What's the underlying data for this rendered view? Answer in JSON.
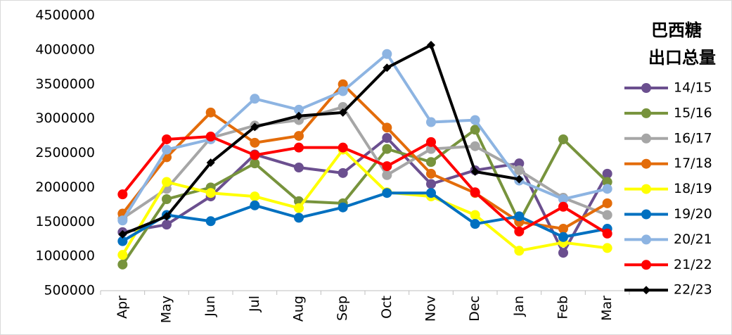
{
  "chart_data": {
    "type": "line",
    "title": [
      "巴西糖",
      "出口总量"
    ],
    "categories": [
      "Apr",
      "May",
      "Jun",
      "Jul",
      "Aug",
      "Sep",
      "Oct",
      "Nov",
      "Dec",
      "Jan",
      "Feb",
      "Mar"
    ],
    "ylim": [
      500000,
      4500000
    ],
    "yticks": [
      500000,
      1000000,
      1500000,
      2000000,
      2500000,
      3000000,
      3500000,
      4000000,
      4500000
    ],
    "grid": false,
    "legend": "right",
    "series": [
      {
        "name": "14/15",
        "color": "#6b4f8f",
        "marker": "circle",
        "values": [
          1350000,
          1460000,
          1870000,
          2480000,
          2290000,
          2210000,
          2720000,
          2050000,
          2250000,
          2350000,
          1050000,
          2200000
        ]
      },
      {
        "name": "15/16",
        "color": "#77933c",
        "marker": "circle",
        "values": [
          880000,
          1830000,
          2000000,
          2350000,
          1800000,
          1770000,
          2560000,
          2370000,
          2840000,
          1500000,
          2700000,
          2080000
        ]
      },
      {
        "name": "16/17",
        "color": "#a6a6a6",
        "marker": "circle",
        "values": [
          1550000,
          1980000,
          2720000,
          2900000,
          2980000,
          3170000,
          2180000,
          2560000,
          2600000,
          2250000,
          1850000,
          1600000
        ]
      },
      {
        "name": "17/18",
        "color": "#e36c0a",
        "marker": "circle",
        "values": [
          1620000,
          2440000,
          3090000,
          2650000,
          2750000,
          3500000,
          2870000,
          2200000,
          1920000,
          1500000,
          1400000,
          1770000
        ]
      },
      {
        "name": "18/19",
        "color": "#ffff00",
        "marker": "circle",
        "values": [
          1020000,
          2080000,
          1920000,
          1870000,
          1700000,
          2550000,
          1930000,
          1870000,
          1600000,
          1080000,
          1200000,
          1120000
        ]
      },
      {
        "name": "19/20",
        "color": "#0070c0",
        "marker": "circle",
        "values": [
          1220000,
          1600000,
          1510000,
          1740000,
          1560000,
          1710000,
          1920000,
          1920000,
          1470000,
          1580000,
          1280000,
          1400000
        ]
      },
      {
        "name": "20/21",
        "color": "#8db4e2",
        "marker": "circle",
        "values": [
          1520000,
          2550000,
          2700000,
          3290000,
          3130000,
          3400000,
          3940000,
          2950000,
          2980000,
          2100000,
          1830000,
          1980000
        ]
      },
      {
        "name": "21/22",
        "color": "#ff0000",
        "marker": "circle",
        "values": [
          1900000,
          2700000,
          2740000,
          2470000,
          2580000,
          2580000,
          2310000,
          2660000,
          1930000,
          1360000,
          1720000,
          1330000
        ]
      },
      {
        "name": "22/23",
        "color": "#000000",
        "marker": "diamond",
        "values": [
          1320000,
          1580000,
          2360000,
          2880000,
          3040000,
          3090000,
          3740000,
          4070000,
          2230000,
          2120000,
          null,
          null
        ]
      }
    ]
  }
}
